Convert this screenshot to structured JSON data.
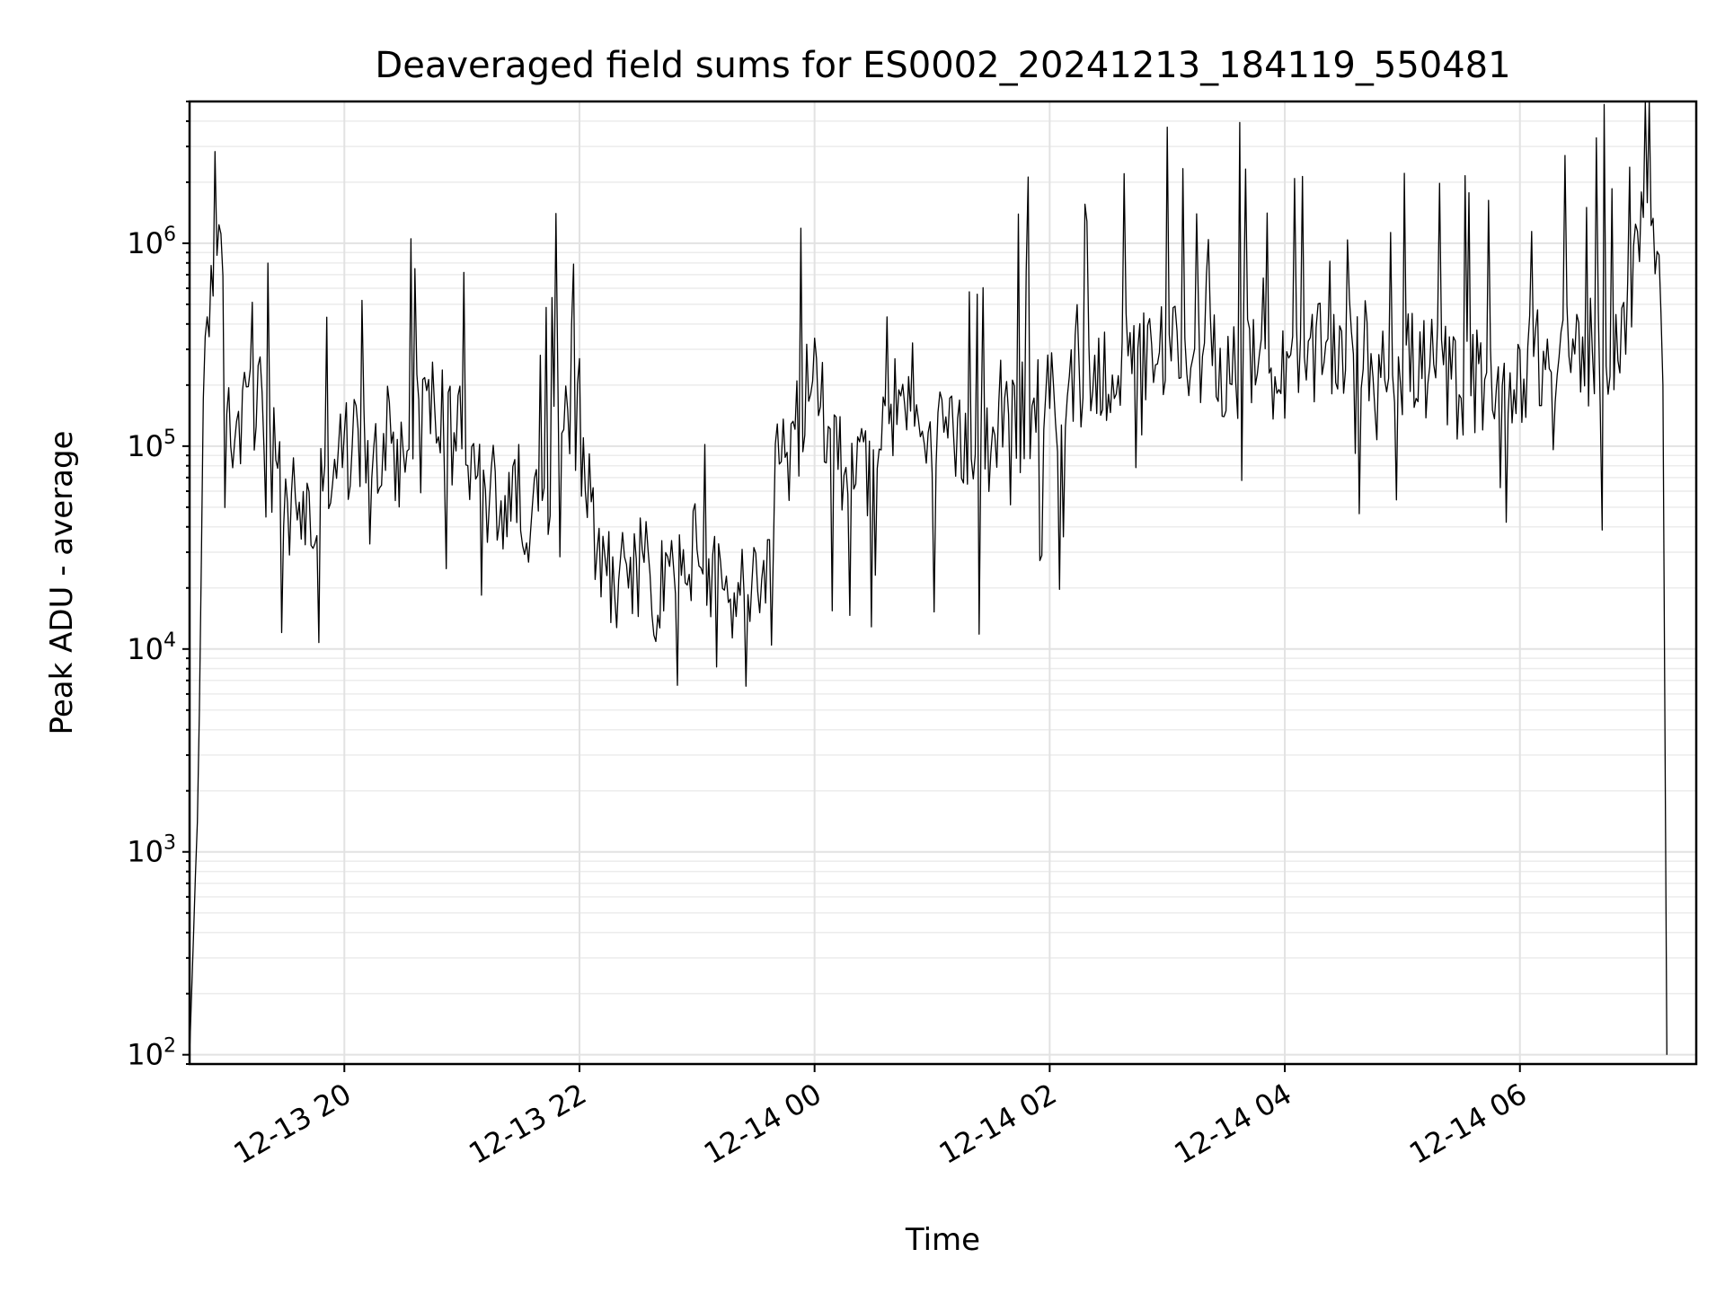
{
  "chart_data": {
    "type": "line",
    "title": "Deaveraged field sums for ES0002_20241213_184119_550481",
    "xlabel": "Time",
    "ylabel": "Peak ADU - average",
    "y_scale": "log",
    "ylim": [
      90,
      5000000
    ],
    "xlim": [
      "2024-12-13 18:41",
      "2024-12-14 07:30"
    ],
    "x_ticks": [
      "12-13 20",
      "12-13 22",
      "12-14 00",
      "12-14 02",
      "12-14 04",
      "12-14 06"
    ],
    "x_tick_values": [
      "2024-12-13 20:00",
      "2024-12-13 22:00",
      "2024-12-14 00:00",
      "2024-12-14 02:00",
      "2024-12-14 04:00",
      "2024-12-14 06:00"
    ],
    "y_ticks": [
      {
        "value": 100,
        "base": "10",
        "exp": "2"
      },
      {
        "value": 1000,
        "base": "10",
        "exp": "3"
      },
      {
        "value": 10000,
        "base": "10",
        "exp": "4"
      },
      {
        "value": 100000,
        "base": "10",
        "exp": "5"
      },
      {
        "value": 1000000,
        "base": "10",
        "exp": "6"
      }
    ],
    "grid": true,
    "line_color": "#000000",
    "series": [
      {
        "x": [
          "2024-12-13 18:41",
          "2024-12-13 18:45",
          "2024-12-13 18:49",
          "2024-12-13 18:53",
          "2024-12-13 18:57",
          "2024-12-13 19:01",
          "2024-12-13 19:05",
          "2024-12-13 19:10",
          "2024-12-13 19:15",
          "2024-12-13 19:20",
          "2024-12-13 19:25",
          "2024-12-13 19:30",
          "2024-12-13 19:35",
          "2024-12-13 19:40",
          "2024-12-13 19:45",
          "2024-12-13 19:50",
          "2024-12-13 19:55",
          "2024-12-13 20:00",
          "2024-12-13 20:10",
          "2024-12-13 20:20",
          "2024-12-13 20:30",
          "2024-12-13 20:40",
          "2024-12-13 20:50",
          "2024-12-13 21:00",
          "2024-12-13 21:10",
          "2024-12-13 21:20",
          "2024-12-13 21:30",
          "2024-12-13 21:40",
          "2024-12-13 21:50",
          "2024-12-13 21:55",
          "2024-12-13 22:00",
          "2024-12-13 22:10",
          "2024-12-13 22:20",
          "2024-12-13 22:30",
          "2024-12-13 22:40",
          "2024-12-13 22:50",
          "2024-12-13 23:00",
          "2024-12-13 23:10",
          "2024-12-13 23:20",
          "2024-12-13 23:30",
          "2024-12-13 23:35",
          "2024-12-13 23:40",
          "2024-12-13 23:50",
          "2024-12-14 00:00",
          "2024-12-14 00:10",
          "2024-12-14 00:20",
          "2024-12-14 00:30",
          "2024-12-14 00:40",
          "2024-12-14 00:50",
          "2024-12-14 01:00",
          "2024-12-14 01:10",
          "2024-12-14 01:20",
          "2024-12-14 01:30",
          "2024-12-14 01:40",
          "2024-12-14 01:50",
          "2024-12-14 02:00",
          "2024-12-14 02:15",
          "2024-12-14 02:30",
          "2024-12-14 02:45",
          "2024-12-14 03:00",
          "2024-12-14 03:15",
          "2024-12-14 03:30",
          "2024-12-14 03:45",
          "2024-12-14 04:00",
          "2024-12-14 04:15",
          "2024-12-14 04:30",
          "2024-12-14 04:45",
          "2024-12-14 05:00",
          "2024-12-14 05:15",
          "2024-12-14 05:30",
          "2024-12-14 05:45",
          "2024-12-14 06:00",
          "2024-12-14 06:15",
          "2024-12-14 06:30",
          "2024-12-14 06:45",
          "2024-12-14 06:55",
          "2024-12-14 07:00",
          "2024-12-14 07:05",
          "2024-12-14 07:10",
          "2024-12-14 07:13",
          "2024-12-14 07:15"
        ],
        "y": [
          100,
          1500,
          400000,
          850000,
          700000,
          150000,
          130000,
          150000,
          180000,
          170000,
          80000,
          45000,
          60000,
          50000,
          40000,
          70000,
          90000,
          100000,
          110000,
          95000,
          100000,
          180000,
          150000,
          110000,
          70000,
          55000,
          60000,
          45000,
          150000,
          180000,
          110000,
          30000,
          25000,
          30000,
          22000,
          28000,
          32000,
          20000,
          22000,
          18000,
          15000,
          70000,
          120000,
          250000,
          110000,
          70000,
          95000,
          170000,
          200000,
          110000,
          100000,
          95000,
          120000,
          130000,
          160000,
          170000,
          230000,
          250000,
          260000,
          310000,
          300000,
          270000,
          240000,
          230000,
          280000,
          320000,
          300000,
          280000,
          250000,
          210000,
          230000,
          260000,
          280000,
          300000,
          310000,
          400000,
          900000,
          2300000,
          1200000,
          200000,
          100
        ]
      }
    ],
    "annotations": []
  }
}
